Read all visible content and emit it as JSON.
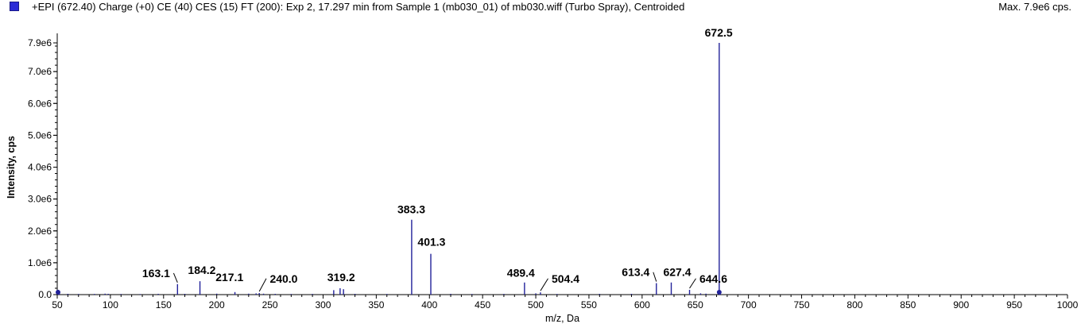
{
  "header": {
    "title": "+EPI (672.40) Charge (+0) CE (40) CES (15) FT (200): Exp 2, 17.297 min from Sample 1 (mb030_01) of mb030.wiff (Turbo Spray), Centroided",
    "max_label": "Max. 7.9e6 cps."
  },
  "colors": {
    "series": "#22229a",
    "swatch": "#2b2bd6"
  },
  "chart_data": {
    "type": "bar",
    "title": "+EPI (672.40) Charge (+0) CE (40) CES (15) FT (200): Exp 2, 17.297 min from Sample 1 (mb030_01) of mb030.wiff (Turbo Spray), Centroided",
    "xlabel": "m/z, Da",
    "ylabel": "Intensity, cps",
    "xlim": [
      50,
      1000
    ],
    "ylim": [
      0,
      8000000
    ],
    "x_ticks": [
      50,
      100,
      150,
      200,
      250,
      300,
      350,
      400,
      450,
      500,
      550,
      600,
      650,
      700,
      750,
      800,
      850,
      900,
      950,
      1000
    ],
    "x_tick_labels": [
      "50",
      "100",
      "150",
      "200",
      "250",
      "300",
      "350",
      "400",
      "450",
      "500",
      "550",
      "600",
      "650",
      "700",
      "750",
      "800",
      "850",
      "900",
      "950",
      "1000"
    ],
    "y_ticks": [
      0,
      1000000,
      2000000,
      3000000,
      4000000,
      5000000,
      6000000,
      7000000,
      7900000
    ],
    "y_tick_labels": [
      "0.0",
      "1.0e6",
      "2.0e6",
      "3.0e6",
      "4.0e6",
      "5.0e6",
      "6.0e6",
      "7.0e6",
      "7.9e6"
    ],
    "peaks": [
      {
        "mz": 51,
        "intensity": 150000
      },
      {
        "mz": 52,
        "intensity": 60000
      },
      {
        "mz": 60,
        "intensity": 25000
      },
      {
        "mz": 70,
        "intensity": 20000
      },
      {
        "mz": 85,
        "intensity": 22000
      },
      {
        "mz": 95,
        "intensity": 30000
      },
      {
        "mz": 98,
        "intensity": 25000
      },
      {
        "mz": 110,
        "intensity": 20000
      },
      {
        "mz": 128,
        "intensity": 18000
      },
      {
        "mz": 145,
        "intensity": 25000
      },
      {
        "mz": 163.1,
        "intensity": 330000
      },
      {
        "mz": 170,
        "intensity": 25000
      },
      {
        "mz": 184.2,
        "intensity": 420000
      },
      {
        "mz": 200,
        "intensity": 30000
      },
      {
        "mz": 217.1,
        "intensity": 80000
      },
      {
        "mz": 230,
        "intensity": 30000
      },
      {
        "mz": 237,
        "intensity": 40000
      },
      {
        "mz": 240.0,
        "intensity": 50000
      },
      {
        "mz": 244,
        "intensity": 30000
      },
      {
        "mz": 255,
        "intensity": 25000
      },
      {
        "mz": 270,
        "intensity": 20000
      },
      {
        "mz": 290,
        "intensity": 22000
      },
      {
        "mz": 310,
        "intensity": 140000
      },
      {
        "mz": 316,
        "intensity": 200000
      },
      {
        "mz": 319.2,
        "intensity": 170000
      },
      {
        "mz": 330,
        "intensity": 25000
      },
      {
        "mz": 360,
        "intensity": 20000
      },
      {
        "mz": 383.3,
        "intensity": 2350000
      },
      {
        "mz": 401.3,
        "intensity": 1280000
      },
      {
        "mz": 420,
        "intensity": 25000
      },
      {
        "mz": 440,
        "intensity": 20000
      },
      {
        "mz": 470,
        "intensity": 22000
      },
      {
        "mz": 489.4,
        "intensity": 380000
      },
      {
        "mz": 500,
        "intensity": 40000
      },
      {
        "mz": 504.4,
        "intensity": 70000
      },
      {
        "mz": 520,
        "intensity": 20000
      },
      {
        "mz": 560,
        "intensity": 25000
      },
      {
        "mz": 590,
        "intensity": 25000
      },
      {
        "mz": 613.4,
        "intensity": 360000
      },
      {
        "mz": 627.4,
        "intensity": 380000
      },
      {
        "mz": 644.6,
        "intensity": 150000
      },
      {
        "mz": 655,
        "intensity": 40000
      },
      {
        "mz": 660,
        "intensity": 30000
      },
      {
        "mz": 672.5,
        "intensity": 7900000
      },
      {
        "mz": 673.5,
        "intensity": 80000
      }
    ],
    "peak_labels": [
      {
        "text": "163.1",
        "mz": 163.1,
        "label_mz": 143,
        "label_intensity": 550000,
        "leader": true
      },
      {
        "text": "184.2",
        "mz": 184.2,
        "label_mz": 186,
        "label_intensity": 650000,
        "leader": false
      },
      {
        "text": "217.1",
        "mz": 217.1,
        "label_mz": 212,
        "label_intensity": 420000,
        "leader": false
      },
      {
        "text": "240.0",
        "mz": 240.0,
        "label_mz": 263,
        "label_intensity": 380000,
        "leader": true
      },
      {
        "text": "319.2",
        "mz": 319.2,
        "label_mz": 317,
        "label_intensity": 420000,
        "leader": false
      },
      {
        "text": "383.3",
        "mz": 383.3,
        "label_mz": 383,
        "label_intensity": 2550000,
        "leader": false
      },
      {
        "text": "401.3",
        "mz": 401.3,
        "label_mz": 402,
        "label_intensity": 1530000,
        "leader": false
      },
      {
        "text": "489.4",
        "mz": 489.4,
        "label_mz": 486,
        "label_intensity": 560000,
        "leader": false
      },
      {
        "text": "504.4",
        "mz": 504.4,
        "label_mz": 528,
        "label_intensity": 380000,
        "leader": true
      },
      {
        "text": "613.4",
        "mz": 613.4,
        "label_mz": 594,
        "label_intensity": 580000,
        "leader": true
      },
      {
        "text": "627.4",
        "mz": 627.4,
        "label_mz": 633,
        "label_intensity": 580000,
        "leader": false
      },
      {
        "text": "644.6",
        "mz": 644.6,
        "label_mz": 667,
        "label_intensity": 380000,
        "leader": true
      },
      {
        "text": "672.5",
        "mz": 672.5,
        "label_mz": 672,
        "label_intensity": 8100000,
        "leader": false
      }
    ],
    "grid": false,
    "legend": "top-left"
  }
}
